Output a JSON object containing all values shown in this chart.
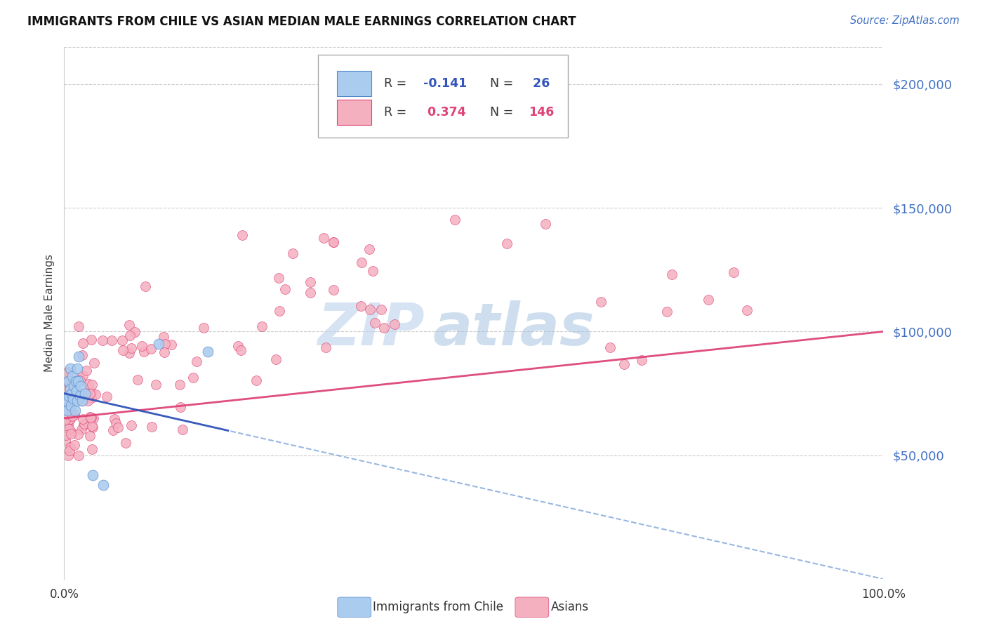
{
  "title": "IMMIGRANTS FROM CHILE VS ASIAN MEDIAN MALE EARNINGS CORRELATION CHART",
  "source": "Source: ZipAtlas.com",
  "ylabel": "Median Male Earnings",
  "ytick_labels": [
    "$50,000",
    "$100,000",
    "$150,000",
    "$200,000"
  ],
  "ytick_values": [
    50000,
    100000,
    150000,
    200000
  ],
  "ytick_color": "#4472c4",
  "xmin": 0.0,
  "xmax": 1.0,
  "ymin": 0,
  "ymax": 215000,
  "chile_color": "#aaccee",
  "chile_edge_color": "#5588cc",
  "asian_color": "#f5b0c0",
  "asian_edge_color": "#dd4477",
  "chile_line_color": "#3355bb",
  "asian_line_color": "#dd4477",
  "watermark_zip_color": "#c5d8f0",
  "watermark_atlas_color": "#b8ccee",
  "background_color": "#ffffff",
  "grid_color": "#cccccc",
  "bottom_legend_chile": "Immigrants from Chile",
  "bottom_legend_asian": "Asians"
}
